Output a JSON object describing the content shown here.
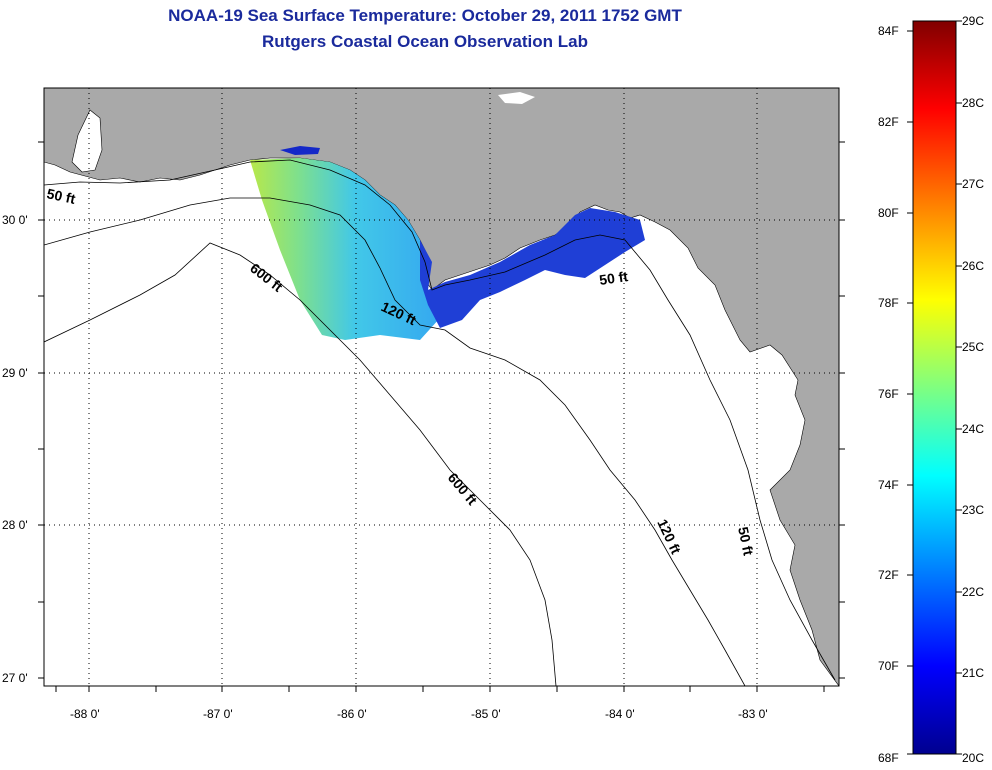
{
  "title": {
    "line1": "NOAA-19 Sea Surface Temperature:  October 29, 2011 1752 GMT",
    "line2": "Rutgers Coastal Ocean Observation Lab"
  },
  "map": {
    "lat_labels": [
      "30 0'",
      "29 0'",
      "28 0'",
      "27 0'"
    ],
    "lon_labels": [
      "-88 0'",
      "-87 0'",
      "-86 0'",
      "-85 0'",
      "-84 0'",
      "-83 0'"
    ],
    "contour_labels": {
      "c50_west": "50 ft",
      "c50_east": "50 ft",
      "c50_south": "50 ft",
      "c120_north": "120 ft",
      "c120_south": "120 ft",
      "c600_north": "600 ft",
      "c600_south": "600 ft"
    },
    "colors": {
      "land": "#a9a9a9",
      "water": "#ffffff",
      "contour": "#000000"
    }
  },
  "colorbar": {
    "fahrenheit_labels": [
      "84F",
      "82F",
      "80F",
      "78F",
      "76F",
      "74F",
      "72F",
      "70F",
      "68F"
    ],
    "celsius_labels": [
      "29C",
      "28C",
      "27C",
      "26C",
      "25C",
      "24C",
      "23C",
      "22C",
      "21C",
      "20C"
    ],
    "gradient_colors": [
      "#00008f",
      "#0000ff",
      "#00ffff",
      "#ffff00",
      "#ff0000",
      "#800000"
    ]
  }
}
